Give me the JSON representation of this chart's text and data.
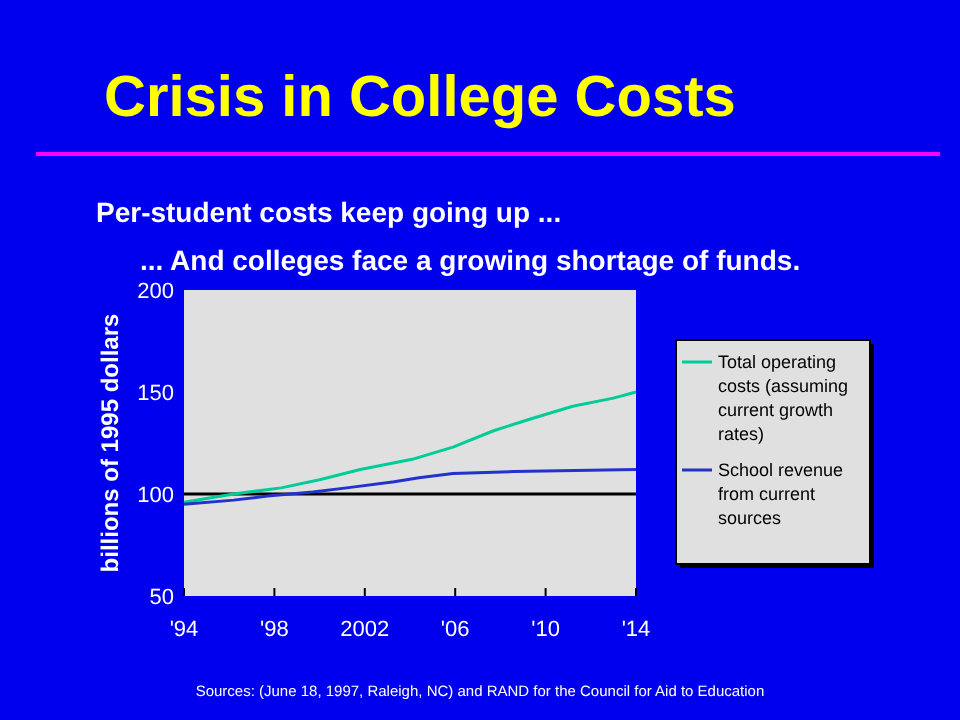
{
  "chart_data": {
    "type": "line",
    "title": "Crisis in College Costs",
    "subtitle": "Per-student costs keep going up ...",
    "ylabel": "billions of 1995 dollars",
    "annotations": [
      "... And colleges face a growing shortage of funds.",
      "Sources: (June 18, 1997, Raleigh, NC) and RAND for the Council for Aid to Education"
    ],
    "xlim": [
      1994,
      2014
    ],
    "xticks": [
      {
        "value": 1994,
        "label": "'94"
      },
      {
        "value": 1998,
        "label": "'98"
      },
      {
        "value": 2002,
        "label": "2002"
      },
      {
        "value": 2006,
        "label": "'06"
      },
      {
        "value": 2010,
        "label": "'10"
      },
      {
        "value": 2014,
        "label": "'14"
      }
    ],
    "ylim": [
      50,
      200
    ],
    "yticks": [
      50,
      100,
      150,
      200
    ],
    "series": [
      {
        "name": "Total operating costs (assuming current growth rates)",
        "color": "#00cc99",
        "x": [
          1994,
          1996.2,
          1998.3,
          2000,
          2001.8,
          2004.1,
          2005.9,
          2007.7,
          2009.4,
          2011.2,
          2013,
          2014
        ],
        "values": [
          96,
          100,
          103,
          107,
          112,
          117,
          123,
          131,
          137,
          143,
          147,
          150
        ]
      },
      {
        "name": "School revenue from current sources",
        "color": "#2233cc",
        "x": [
          1994,
          1996.2,
          1997.7,
          1999.7,
          2001.2,
          2003.3,
          2004.4,
          2005.9,
          2008.6,
          2014
        ],
        "values": [
          95,
          97,
          99,
          101,
          103,
          106,
          108,
          110,
          111,
          112
        ]
      }
    ],
    "ref_lines": [
      {
        "axis": "y",
        "value": 100,
        "color": "#000000"
      }
    ],
    "legend": "right",
    "grid": false
  }
}
